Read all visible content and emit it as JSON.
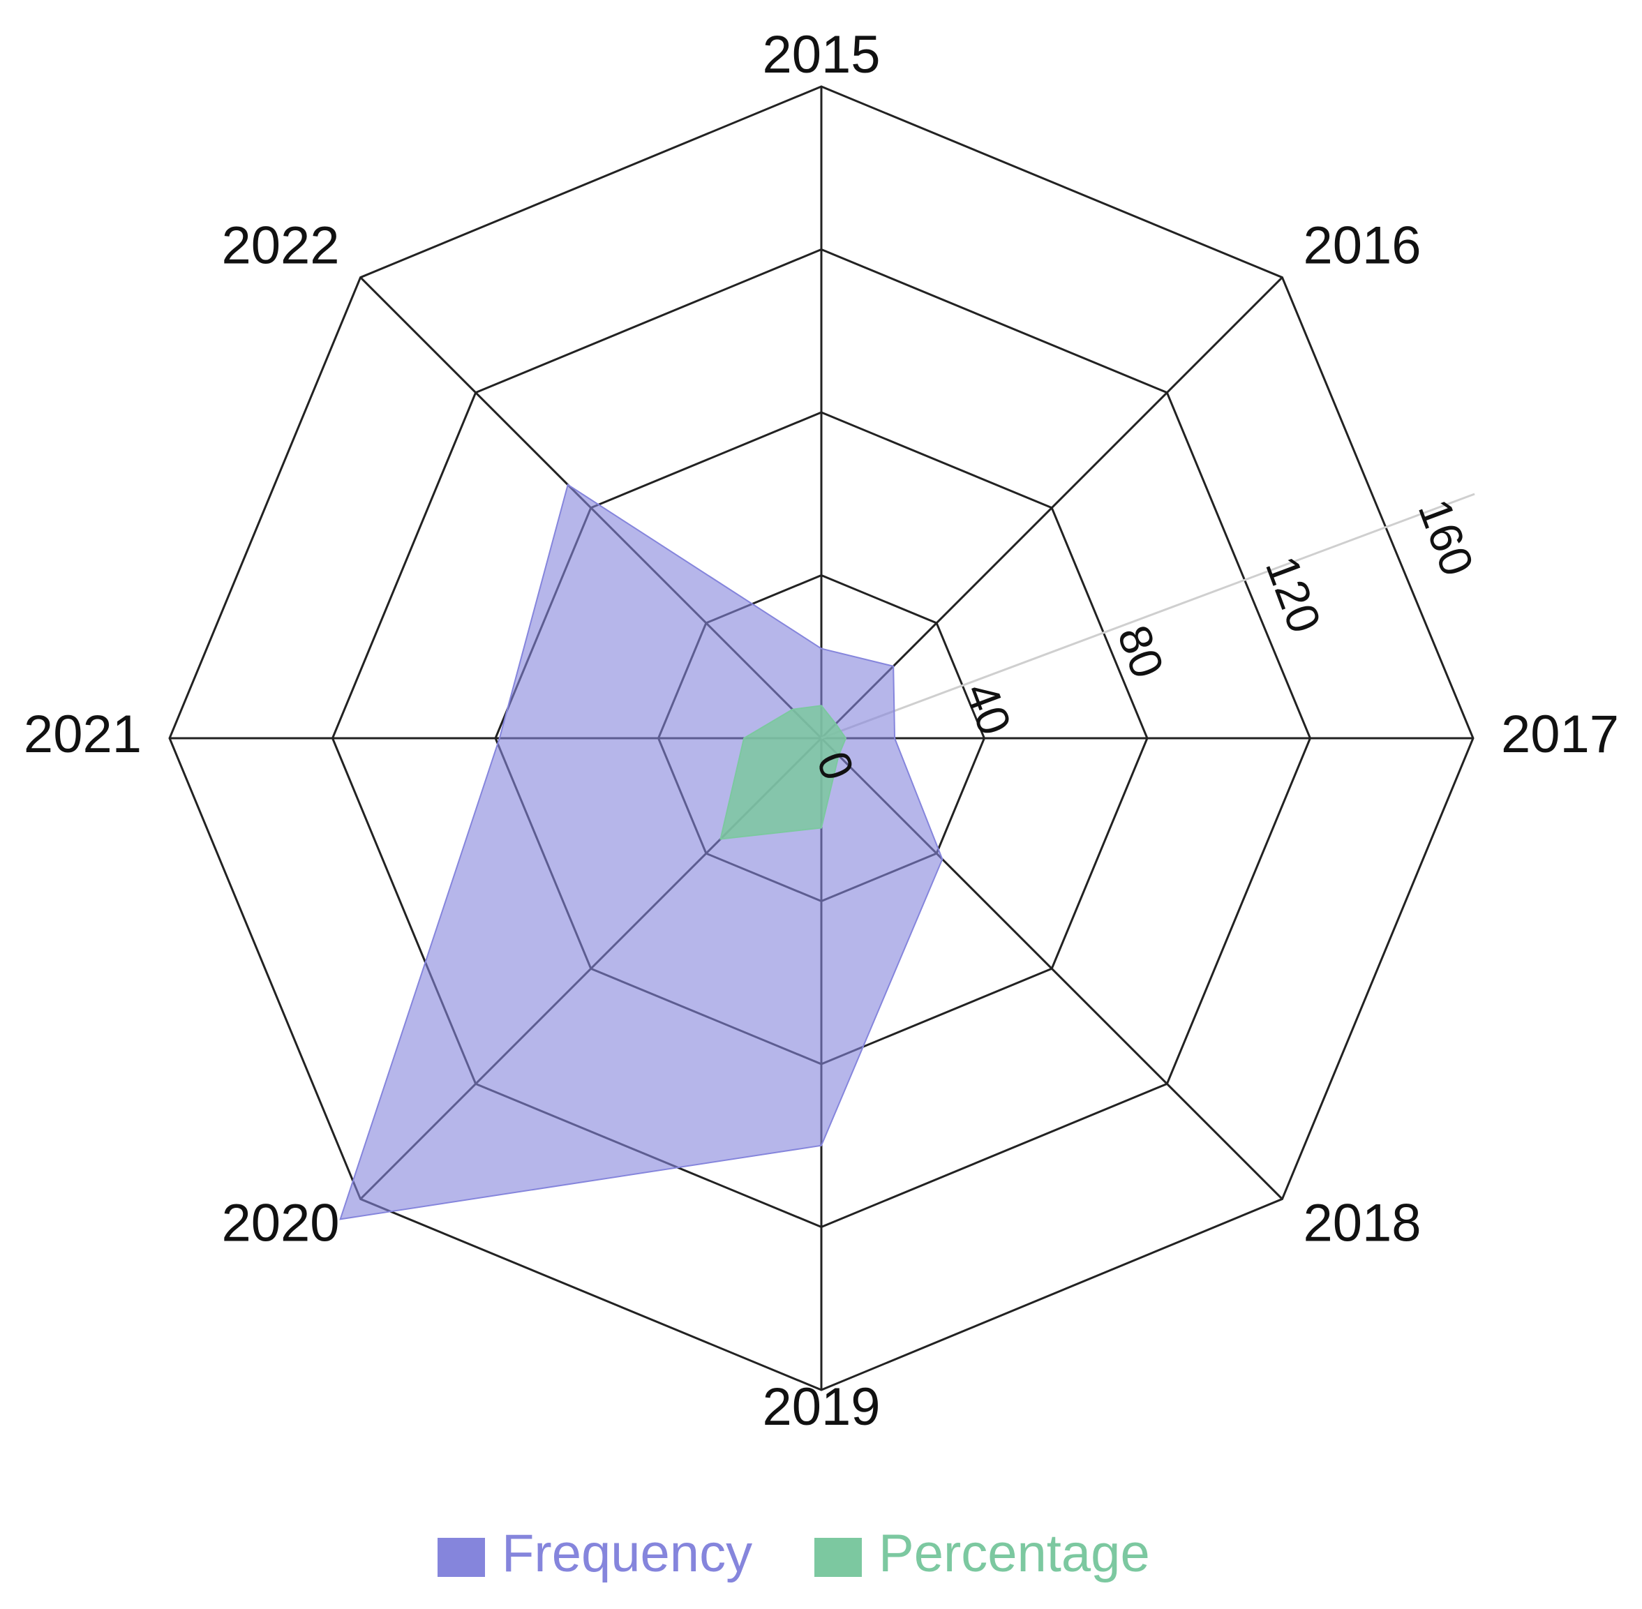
{
  "chart_data": {
    "type": "radar",
    "categories": [
      "2015",
      "2016",
      "2017",
      "2018",
      "2019",
      "2020",
      "2021",
      "2022"
    ],
    "radial_axis": {
      "range": [
        0,
        160
      ],
      "ticks": [
        "0",
        "40",
        "80",
        "120",
        "160"
      ],
      "tick_values": [
        0,
        40,
        80,
        120,
        160
      ],
      "grid": true
    },
    "series": [
      {
        "name": "Frequency",
        "color": "#8585dc",
        "values": [
          22,
          25,
          18,
          42,
          100,
          167,
          79,
          88
        ]
      },
      {
        "name": "Percentage",
        "color": "#7cc8a0",
        "values": [
          8,
          5,
          6,
          6,
          22,
          35,
          19,
          10
        ]
      }
    ],
    "legend": {
      "placement": "bottom"
    }
  }
}
